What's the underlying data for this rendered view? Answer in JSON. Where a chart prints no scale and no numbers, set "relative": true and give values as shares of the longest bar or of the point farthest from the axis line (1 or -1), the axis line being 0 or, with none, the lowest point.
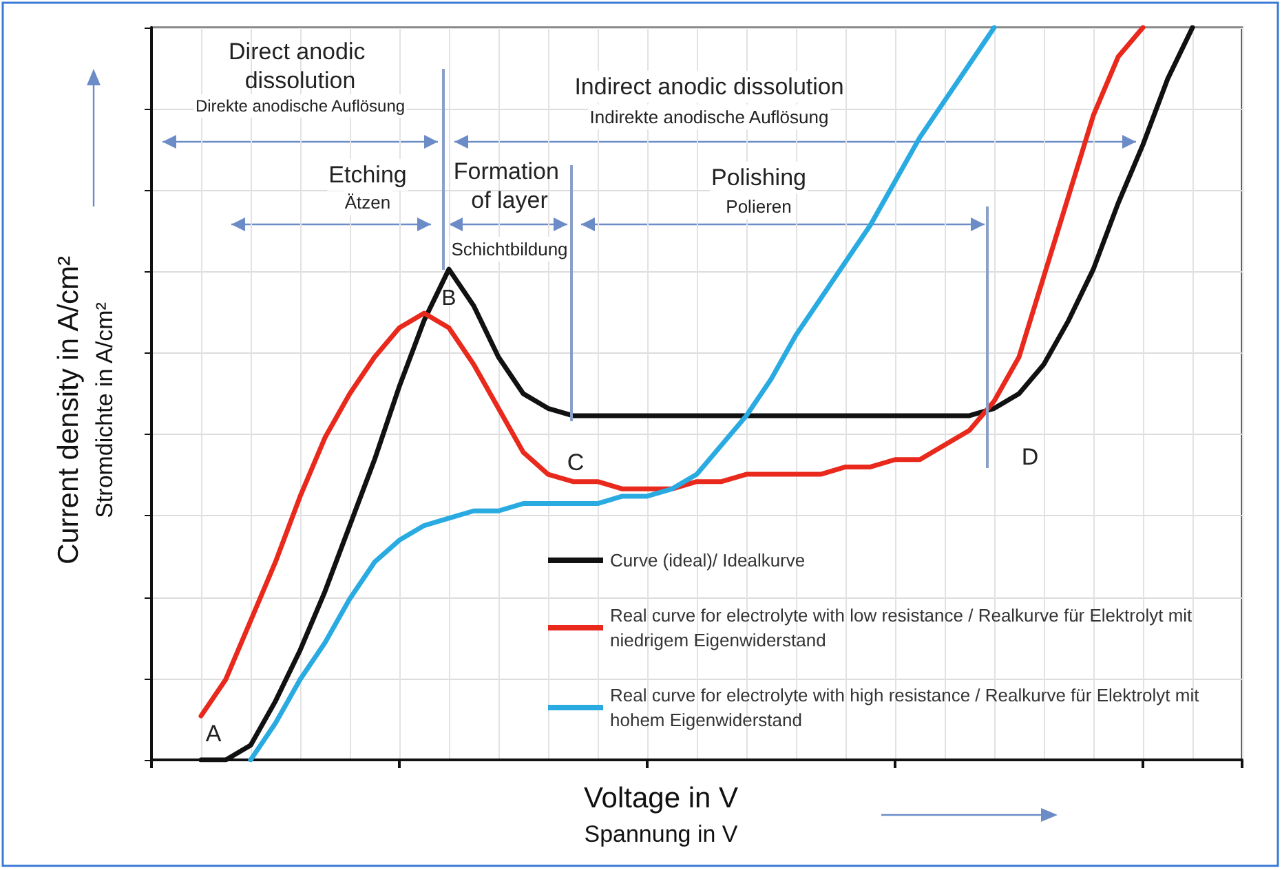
{
  "chart_data": {
    "type": "line",
    "relative": true,
    "xlabel": "Voltage in V\nSpannung in V",
    "ylabel": "Current density in A/cm²\nStromdichte in A/cm²",
    "categories": [
      null,
      null,
      null,
      null,
      null,
      null,
      null,
      null,
      null,
      null,
      null,
      null,
      null,
      null,
      null,
      null,
      null,
      null,
      null,
      null,
      null,
      null,
      null,
      null,
      null,
      null,
      null,
      null,
      null,
      null,
      null,
      null,
      null,
      null,
      null,
      null,
      null,
      null,
      null,
      null,
      null,
      null,
      null,
      null,
      null
    ],
    "series": [
      {
        "name": "Curve (ideal)/ Idealkurve",
        "color": "#111111",
        "values": [
          null,
          null,
          0,
          0,
          0.02,
          0.08,
          0.15,
          0.23,
          0.32,
          0.41,
          0.51,
          0.6,
          0.67,
          0.62,
          0.55,
          0.5,
          0.48,
          0.47,
          0.47,
          0.47,
          0.47,
          0.47,
          0.47,
          0.47,
          0.47,
          0.47,
          0.47,
          0.47,
          0.47,
          0.47,
          0.47,
          0.47,
          0.47,
          0.47,
          0.48,
          0.5,
          0.54,
          0.6,
          0.67,
          0.76,
          0.84,
          0.93,
          1,
          null,
          null
        ]
      },
      {
        "name": "Real curve for electrolyte with low resistance / Realkurve für Elektrolyt mit niedrigem Eigenwiderstand",
        "color": "#e8291c",
        "values": [
          null,
          null,
          0.06,
          0.11,
          0.19,
          0.27,
          0.36,
          0.44,
          0.5,
          0.55,
          0.59,
          0.61,
          0.59,
          0.54,
          0.48,
          0.42,
          0.39,
          0.38,
          0.38,
          0.37,
          0.37,
          0.37,
          0.38,
          0.38,
          0.39,
          0.39,
          0.39,
          0.39,
          0.4,
          0.4,
          0.41,
          0.41,
          0.43,
          0.45,
          0.49,
          0.55,
          0.66,
          0.77,
          0.88,
          0.96,
          1,
          null,
          null,
          null,
          null
        ]
      },
      {
        "name": "Real curve for electrolyte with high resistance / Realkurve für Elektrolyt mit hohem Eigenwiderstand",
        "color": "#29abe2",
        "values": [
          null,
          null,
          null,
          null,
          0,
          0.05,
          0.11,
          0.16,
          0.22,
          0.27,
          0.3,
          0.32,
          0.33,
          0.34,
          0.34,
          0.35,
          0.35,
          0.35,
          0.35,
          0.36,
          0.36,
          0.37,
          0.39,
          0.43,
          0.47,
          0.52,
          0.58,
          0.63,
          0.68,
          0.73,
          0.79,
          0.85,
          0.9,
          0.95,
          1,
          null,
          null,
          null,
          null,
          null,
          null,
          null,
          null,
          null,
          null
        ]
      }
    ],
    "annotations": [
      "Direct anodic dissolution",
      "Direkte anodische Auflösung",
      "Indirect anodic dissolution",
      "Indirekte anodische Auflösung",
      "Etching",
      "Ätzen",
      "Formation of layer",
      "Schichtbildung",
      "Polishing",
      "Polieren",
      "A",
      "B",
      "C",
      "D"
    ],
    "grid": true,
    "legend": "bottom right",
    "marker": "none",
    "line_style": "solid"
  }
}
